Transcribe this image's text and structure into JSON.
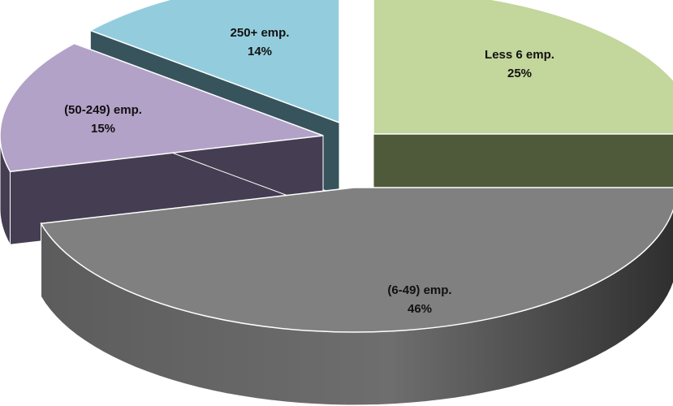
{
  "chart_data": {
    "type": "pie",
    "variant": "3d-exploded",
    "title": "",
    "slices": [
      {
        "label": "Less 6 emp.",
        "value": 25,
        "value_label": "25%",
        "color": "#c3d69b",
        "side_color": "#4f5a3b"
      },
      {
        "label": "(6-49) emp.",
        "value": 46,
        "value_label": "46%",
        "color": "#808080",
        "side_color": "#4d4d4d"
      },
      {
        "label": "(50-249) emp.",
        "value": 15,
        "value_label": "15%",
        "color": "#b3a2c7",
        "side_color": "#453e52"
      },
      {
        "label": "250+ emp.",
        "value": 14,
        "value_label": "14%",
        "color": "#93cddd",
        "side_color": "#37545c"
      }
    ],
    "legend": "none"
  }
}
